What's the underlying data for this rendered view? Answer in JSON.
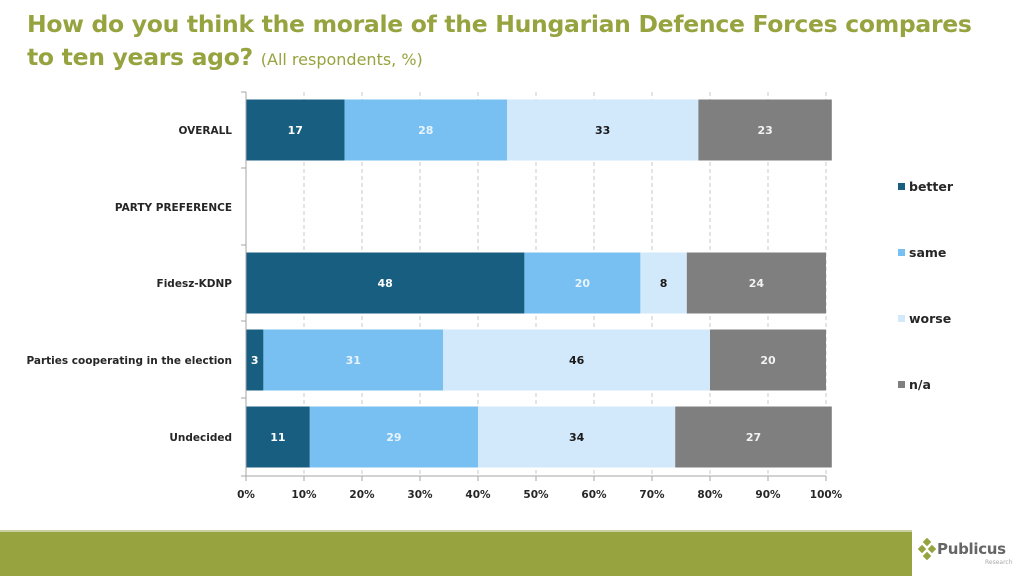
{
  "title": {
    "main_line1": "How do you think the morale of the Hungarian Defence Forces compares",
    "main_line2": "to ten years ago?",
    "subtitle": "(All respondents,  %)"
  },
  "chart_data": {
    "type": "bar",
    "orientation": "horizontal",
    "stacked": "percent",
    "title": "How do you think the morale of the Hungarian Defence Forces compares to ten years ago? (All respondents, %)",
    "xlabel": "",
    "ylabel": "",
    "xlim": [
      0,
      100
    ],
    "x_ticks": [
      "0%",
      "10%",
      "20%",
      "30%",
      "40%",
      "50%",
      "60%",
      "70%",
      "80%",
      "90%",
      "100%"
    ],
    "grid": "vertical dashed",
    "legend_position": "right",
    "categories": [
      "OVERALL",
      "PARTY PREFERENCE",
      "Fidesz-KDNP",
      "Parties cooperating  in the election",
      "Undecided"
    ],
    "series": [
      {
        "name": "better",
        "color": "#175e80",
        "label_color": "#ffffff",
        "values": [
          17,
          null,
          48,
          3,
          11
        ]
      },
      {
        "name": "same",
        "color": "#78bff2",
        "label_color": "#e8f4fd",
        "values": [
          28,
          null,
          20,
          31,
          29
        ]
      },
      {
        "name": "worse",
        "color": "#d2e9fb",
        "label_color": "#1a1a1a",
        "values": [
          33,
          null,
          8,
          46,
          34
        ]
      },
      {
        "name": "n/a",
        "color": "#7f7f7f",
        "label_color": "#f2f2f2",
        "values": [
          23,
          null,
          24,
          20,
          27
        ]
      }
    ]
  },
  "footer": {
    "brand_color": "#97a33f",
    "logo_name": "Publicus",
    "logo_sub": "Research"
  }
}
